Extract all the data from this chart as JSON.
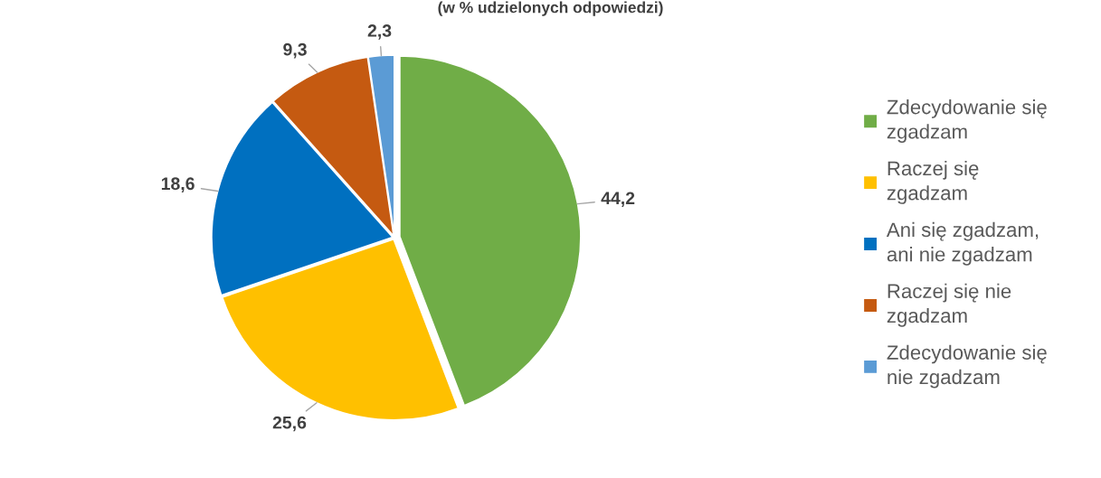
{
  "chart_data": {
    "type": "pie",
    "title": "(w % udzielonych odpowiedzi)",
    "categories": [
      "Zdecydowanie się zgadzam",
      "Raczej się zgadzam",
      "Ani się zgadzam, ani nie zgadzam",
      "Raczej się nie zgadzam",
      "Zdecydowanie się nie zgadzam"
    ],
    "values": [
      44.2,
      25.6,
      18.6,
      9.3,
      2.3
    ],
    "colors": [
      "#70ad47",
      "#ffc000",
      "#0070c0",
      "#c55a11",
      "#5b9bd5"
    ],
    "value_labels": [
      "44,2",
      "25,6",
      "18,6",
      "9,3",
      "2,3"
    ],
    "legend": "right"
  }
}
